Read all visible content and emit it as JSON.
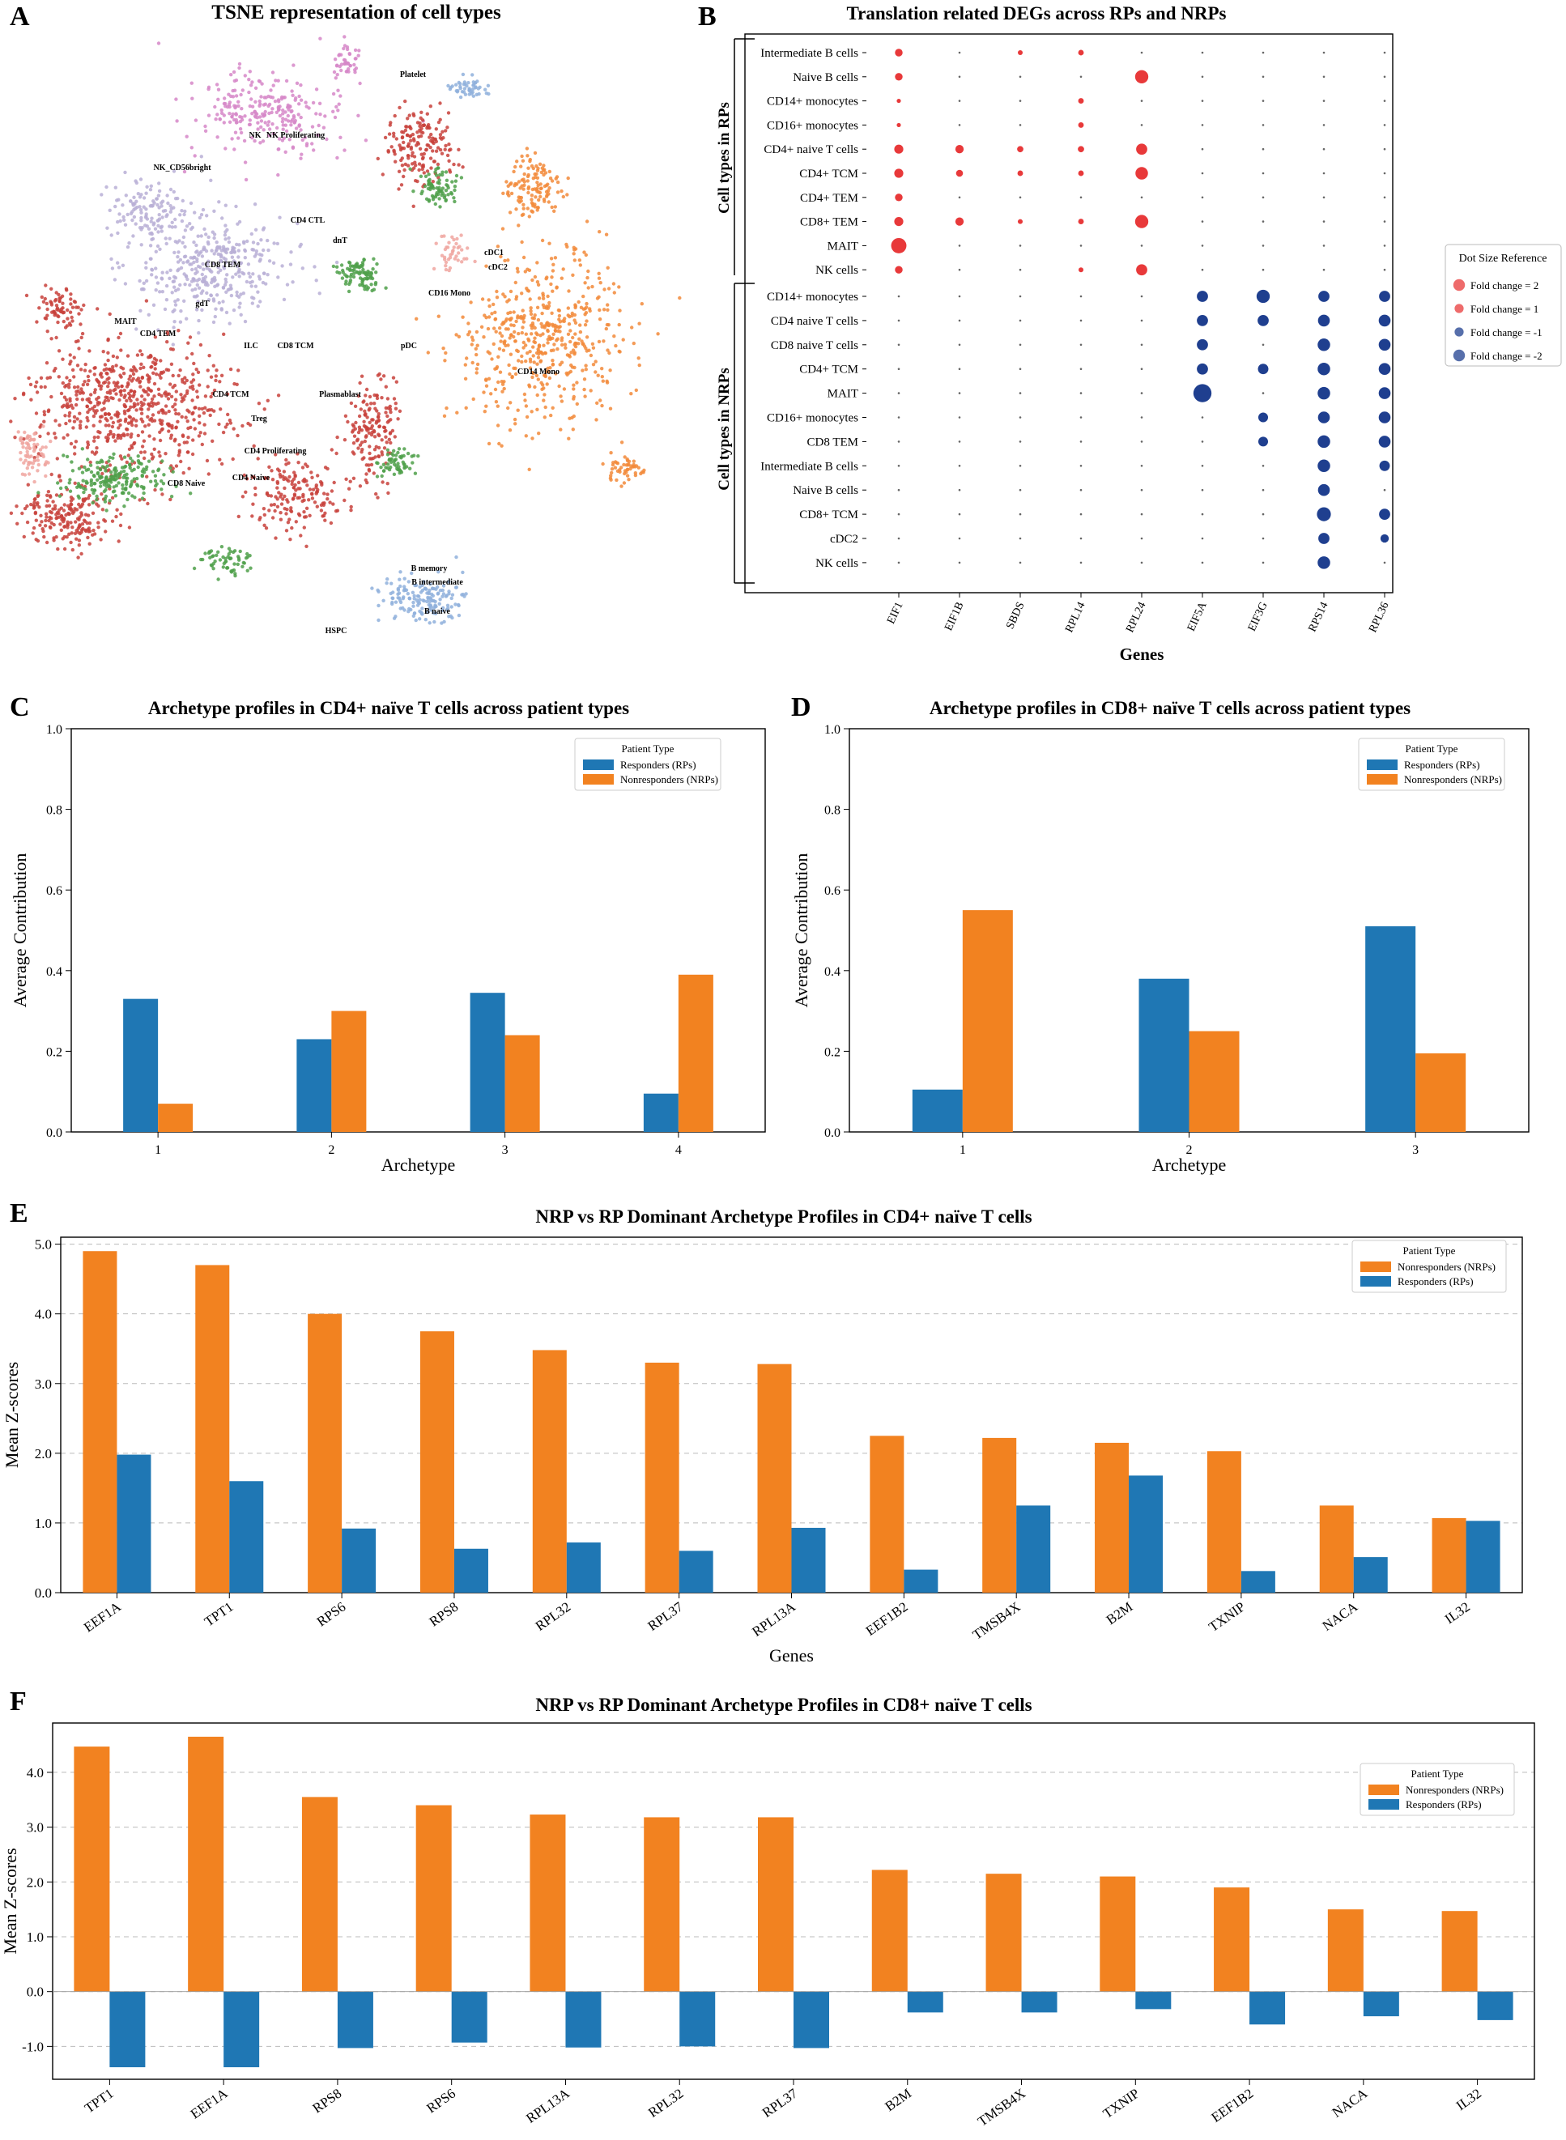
{
  "colors": {
    "rp": "#1f77b4",
    "nrp": "#f28220",
    "dot_up": "#e8393a",
    "dot_down": "#1f3f8f",
    "tsne_red": "#c8413b",
    "tsne_green": "#4fa04a",
    "tsne_pink": "#d687c8",
    "tsne_lavender": "#b8afd6",
    "tsne_orange": "#f28a3a",
    "tsne_blue": "#8fb0dc",
    "tsne_salmon": "#f0a6a0"
  },
  "panels": {
    "A": {
      "letter": "A",
      "title": "TSNE representation of cell types"
    },
    "B": {
      "letter": "B"
    },
    "C": {
      "letter": "C"
    },
    "D": {
      "letter": "D"
    },
    "E": {
      "letter": "E"
    },
    "F": {
      "letter": "F"
    }
  },
  "tsne": {
    "labels": [
      "Platelet",
      "NK",
      "NK Proliferating",
      "NK_CD56bright",
      "CD4 CTL",
      "dnT",
      "CD8 TEM",
      "gdT",
      "cDC1",
      "cDC2",
      "CD16 Mono",
      "MAIT",
      "CD4 TEM",
      "ILC",
      "CD8 TCM",
      "pDC",
      "CD4 TCM",
      "Treg",
      "Plasmablast",
      "CD14 Mono",
      "CD4 Proliferating",
      "CD8 Naive",
      "CD4 Naive",
      "B memory",
      "B intermediate",
      "B naive",
      "HSPC"
    ]
  },
  "chart_data": [
    {
      "id": "B",
      "type": "scatter",
      "subtype": "dotplot",
      "title": "Translation related DEGs across RPs and NRPs",
      "xlabel": "Genes",
      "genes": [
        "EIF1",
        "EIF1B",
        "SBDS",
        "RPL14",
        "RPL24",
        "EIF5A",
        "EIF3G",
        "RPS14",
        "RPL36"
      ],
      "rp_group_label": "Cell types in RPs",
      "nrp_group_label": "Cell types in NRPs",
      "rp_rows": [
        "Intermediate B cells",
        "Naive B cells",
        "CD14+ monocytes",
        "CD16+ monocytes",
        "CD4+ naive T cells",
        "CD4+ TCM",
        "CD4+ TEM",
        "CD8+ TEM",
        "MAIT",
        "NK cells"
      ],
      "nrp_rows": [
        "CD14+ monocytes",
        "CD4 naive T cells",
        "CD8 naive T cells",
        "CD4+ TCM",
        "MAIT",
        "CD16+ monocytes",
        "CD8 TEM",
        "Intermediate B cells",
        "Naive B cells",
        "CD8+ TCM",
        "cDC2",
        "NK cells"
      ],
      "rp_fold_changes": [
        [
          1.1,
          0,
          0.7,
          0.8,
          0,
          0,
          0,
          0,
          0
        ],
        [
          1.1,
          0,
          0,
          0,
          1.9,
          0,
          0,
          0,
          0
        ],
        [
          0.6,
          0,
          0,
          0.8,
          0,
          0,
          0,
          0,
          0
        ],
        [
          0.6,
          0,
          0,
          0.8,
          0,
          0,
          0,
          0,
          0
        ],
        [
          1.3,
          1.2,
          0.9,
          0.9,
          1.6,
          0,
          0,
          0,
          0
        ],
        [
          1.3,
          1.0,
          0.8,
          0.8,
          1.8,
          0,
          0,
          0,
          0
        ],
        [
          1.1,
          0,
          0,
          0,
          0,
          0,
          0,
          0,
          0
        ],
        [
          1.3,
          1.2,
          0.7,
          0.8,
          1.9,
          0,
          0,
          0,
          0
        ],
        [
          2.2,
          0,
          0,
          0,
          0,
          0,
          0,
          0,
          0
        ],
        [
          1.1,
          0,
          0,
          0.7,
          1.6,
          0,
          0,
          0,
          0
        ]
      ],
      "nrp_fold_changes": [
        [
          0,
          0,
          0,
          0,
          0,
          -1.6,
          -1.9,
          -1.6,
          -1.6
        ],
        [
          0,
          0,
          0,
          0,
          0,
          -1.6,
          -1.6,
          -1.7,
          -1.7
        ],
        [
          0,
          0,
          0,
          0,
          0,
          -1.6,
          0,
          -1.8,
          -1.7
        ],
        [
          0,
          0,
          0,
          0,
          0,
          -1.6,
          -1.5,
          -1.8,
          -1.7
        ],
        [
          0,
          0,
          0,
          0,
          0,
          -2.6,
          0,
          -1.8,
          -1.7
        ],
        [
          0,
          0,
          0,
          0,
          0,
          0,
          -1.4,
          -1.7,
          -1.7
        ],
        [
          0,
          0,
          0,
          0,
          0,
          0,
          -1.4,
          -1.8,
          -1.7
        ],
        [
          0,
          0,
          0,
          0,
          0,
          0,
          0,
          -1.8,
          -1.5
        ],
        [
          0,
          0,
          0,
          0,
          0,
          0,
          0,
          -1.7,
          0
        ],
        [
          0,
          0,
          0,
          0,
          0,
          0,
          0,
          -2.0,
          -1.6
        ],
        [
          0,
          0,
          0,
          0,
          0,
          0,
          0,
          -1.6,
          -1.2
        ],
        [
          0,
          0,
          0,
          0,
          0,
          0,
          0,
          -1.8,
          0
        ]
      ],
      "legend": {
        "title": "Dot Size Reference",
        "entries": [
          {
            "label": "Fold change = 2",
            "value": 2
          },
          {
            "label": "Fold change = 1",
            "value": 1
          },
          {
            "label": "Fold change = -1",
            "value": -1
          },
          {
            "label": "Fold change = -2",
            "value": -2
          }
        ],
        "placement": "right"
      }
    },
    {
      "id": "C",
      "type": "bar",
      "title": "Archetype profiles in CD4+ naïve T cells across patient types",
      "xlabel": "Archetype",
      "ylabel": "Average Contribution",
      "categories": [
        "1",
        "2",
        "3",
        "4"
      ],
      "ylim": [
        0,
        1.0
      ],
      "yticks": [
        "0.0",
        "0.2",
        "0.4",
        "0.6",
        "0.8",
        "1.0"
      ],
      "legend_title": "Patient Type",
      "legend_placement": "top-right",
      "series": [
        {
          "name": "Responders (RPs)",
          "values": [
            0.33,
            0.23,
            0.345,
            0.095
          ]
        },
        {
          "name": "Nonresponders (NRPs)",
          "values": [
            0.07,
            0.3,
            0.24,
            0.39
          ]
        }
      ]
    },
    {
      "id": "D",
      "type": "bar",
      "title": "Archetype profiles in CD8+ naïve T cells across patient types",
      "xlabel": "Archetype",
      "ylabel": "Average Contribution",
      "categories": [
        "1",
        "2",
        "3"
      ],
      "ylim": [
        0,
        1.0
      ],
      "yticks": [
        "0.0",
        "0.2",
        "0.4",
        "0.6",
        "0.8",
        "1.0"
      ],
      "legend_title": "Patient Type",
      "legend_placement": "top-right",
      "series": [
        {
          "name": "Responders (RPs)",
          "values": [
            0.105,
            0.38,
            0.51
          ]
        },
        {
          "name": "Nonresponders (NRPs)",
          "values": [
            0.55,
            0.25,
            0.195
          ]
        }
      ]
    },
    {
      "id": "E",
      "type": "bar",
      "title": "NRP vs RP Dominant Archetype Profiles in CD4+ naïve T cells",
      "xlabel": "Genes",
      "ylabel": "Mean Z-scores",
      "categories": [
        "EEF1A",
        "TPT1",
        "RPS6",
        "RPS8",
        "RPL32",
        "RPL37",
        "RPL13A",
        "EEF1B2",
        "TMSB4X",
        "B2M",
        "TXNIP",
        "NACA",
        "IL32"
      ],
      "ylim": [
        0,
        5.1
      ],
      "yticks": [
        "0.0",
        "1.0",
        "2.0",
        "3.0",
        "4.0",
        "5.0"
      ],
      "grid": "horizontal-dashed",
      "legend_title": "Patient Type",
      "legend_placement": "top-right",
      "series": [
        {
          "name": "Nonresponders (NRPs)",
          "values": [
            4.9,
            4.7,
            4.0,
            3.75,
            3.48,
            3.3,
            3.28,
            2.25,
            2.22,
            2.15,
            2.03,
            1.25,
            1.07
          ]
        },
        {
          "name": "Responders (RPs)",
          "values": [
            1.98,
            1.6,
            0.92,
            0.63,
            0.72,
            0.6,
            0.93,
            0.33,
            1.25,
            1.68,
            0.31,
            0.51,
            1.03
          ]
        }
      ]
    },
    {
      "id": "F",
      "type": "bar",
      "title": "NRP vs RP Dominant Archetype Profiles in CD8+ naïve T cells",
      "xlabel": "",
      "ylabel": "Mean Z-scores",
      "categories": [
        "TPT1",
        "EEF1A",
        "RPS8",
        "RPS6",
        "RPL13A",
        "RPL32",
        "RPL37",
        "B2M",
        "TMSB4X",
        "TXNIP",
        "EEF1B2",
        "NACA",
        "IL32"
      ],
      "ylim": [
        -1.6,
        4.9
      ],
      "yticks": [
        "-1.0",
        "0.0",
        "1.0",
        "2.0",
        "3.0",
        "4.0"
      ],
      "grid": "horizontal-dashed",
      "legend_title": "Patient Type",
      "legend_placement": "top-right",
      "series": [
        {
          "name": "Nonresponders (NRPs)",
          "values": [
            4.47,
            4.65,
            3.55,
            3.4,
            3.23,
            3.18,
            3.18,
            2.22,
            2.15,
            2.1,
            1.9,
            1.5,
            1.47
          ]
        },
        {
          "name": "Responders (RPs)",
          "values": [
            -1.38,
            -1.38,
            -1.03,
            -0.93,
            -1.02,
            -1.0,
            -1.03,
            -0.38,
            -0.38,
            -0.32,
            -0.6,
            -0.45,
            -0.52
          ]
        }
      ]
    }
  ]
}
